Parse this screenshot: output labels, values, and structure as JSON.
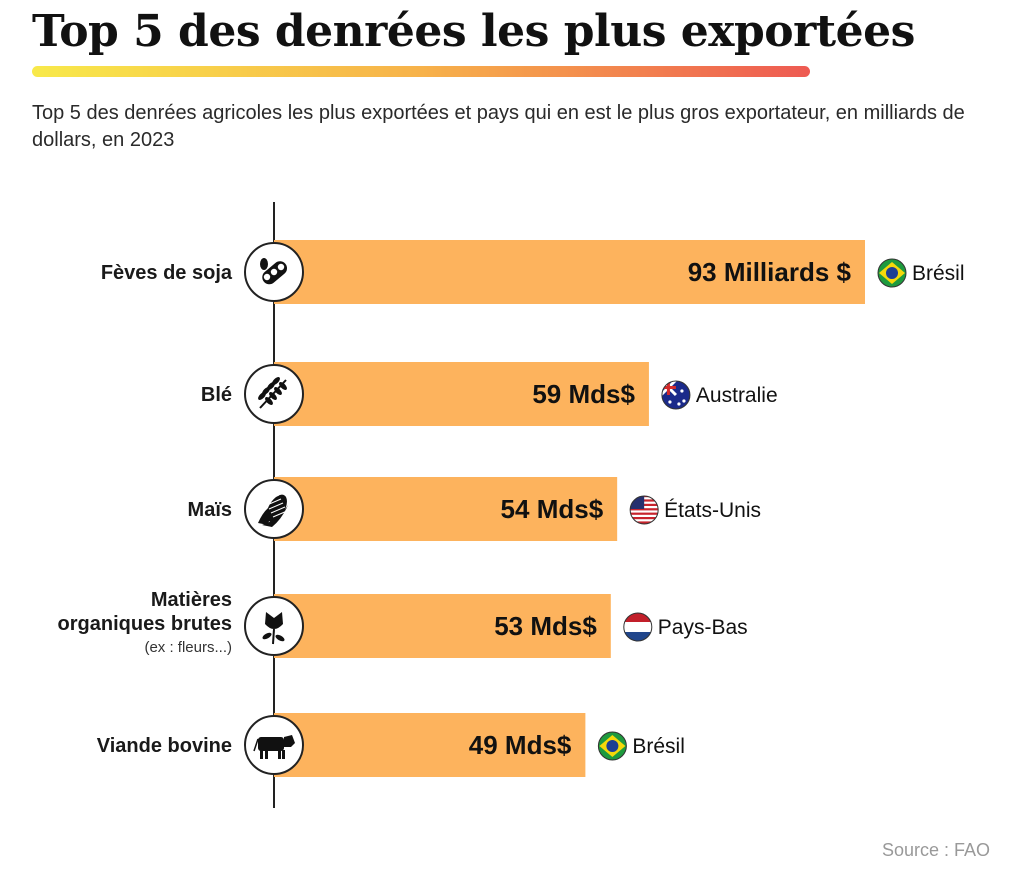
{
  "header": {
    "title": "Top 5 des denrées les plus exportées",
    "subtitle": "Top 5 des denrées agricoles les plus exportées et pays qui en est le plus gros exportateur, en milliards de dollars, en 2023",
    "gradient_colors": [
      "#f8e94a",
      "#f7b24a",
      "#ee5a52"
    ]
  },
  "source": "Source : FAO",
  "chart_data": {
    "type": "bar",
    "orientation": "horizontal",
    "title": "Top 5 des denrées les plus exportées",
    "unit": "milliards de dollars",
    "bar_color": "#fdb35d",
    "categories": [
      "Fèves de soja",
      "Blé",
      "Maïs",
      "Matières organiques brutes",
      "Viande bovine"
    ],
    "category_notes": [
      "",
      "",
      "",
      "(ex : fleurs...)",
      ""
    ],
    "values": [
      93,
      59,
      54,
      53,
      49
    ],
    "value_labels": [
      "93 Milliards $",
      "59 Mds$",
      "54 Mds$",
      "53 Mds$",
      "49 Mds$"
    ],
    "top_exporters": [
      "Brésil",
      "Australie",
      "États-Unis",
      "Pays-Bas",
      "Brésil"
    ],
    "icons": [
      "soybean-icon",
      "wheat-icon",
      "corn-icon",
      "flower-icon",
      "cow-icon"
    ],
    "flag_icons": [
      "flag-brazil-icon",
      "flag-australia-icon",
      "flag-usa-icon",
      "flag-netherlands-icon",
      "flag-brazil-icon"
    ]
  }
}
